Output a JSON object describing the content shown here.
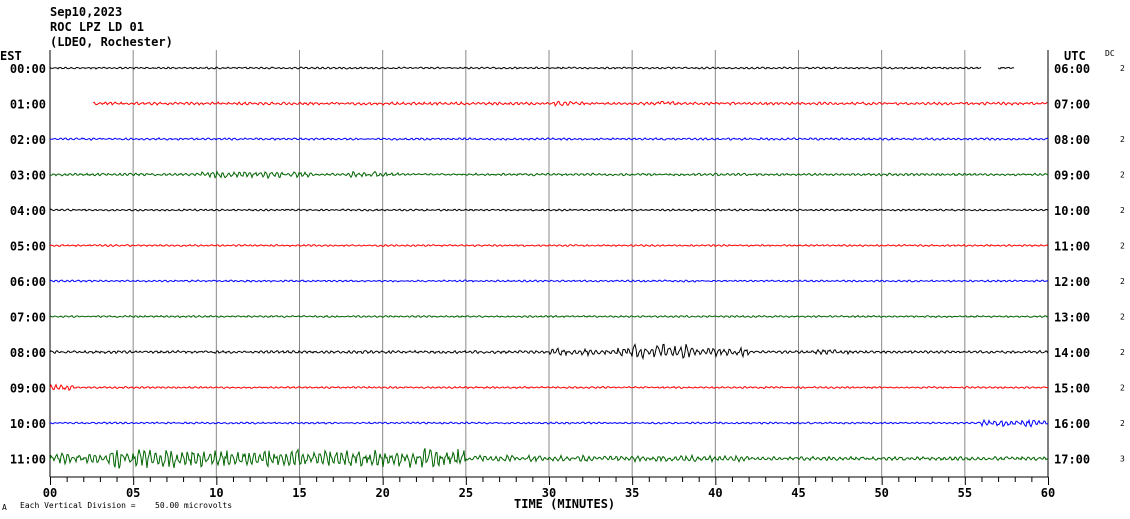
{
  "chart_data": {
    "type": "line",
    "title_lines": [
      "Sep10,2023",
      "ROC LPZ LD 01",
      "(LDEO, Rochester)"
    ],
    "left_axis_label": "EST",
    "right_axis_label": "UTC",
    "dc_label": "DC",
    "xlabel": "TIME (MINUTES)",
    "xlim": [
      0,
      60
    ],
    "x_ticks": [
      "00",
      "05",
      "10",
      "15",
      "20",
      "25",
      "30",
      "35",
      "40",
      "45",
      "50",
      "55",
      "60"
    ],
    "scale_note": "Each Vertical Division =",
    "scale_value": "50.00 microvolts",
    "corner_mark": "A",
    "rows": [
      {
        "est": "00:00",
        "utc": "06:00",
        "dc": "2",
        "color": "#000000",
        "start": 0,
        "end": 56,
        "extra": [
          57,
          58
        ],
        "env": [
          [
            0,
            60,
            1.0
          ]
        ]
      },
      {
        "est": "01:00",
        "utc": "07:00",
        "dc": "",
        "color": "#ff0000",
        "start": 2.6,
        "end": 60,
        "env": [
          [
            2.6,
            60,
            1.5
          ],
          [
            30,
            32,
            2.5
          ],
          [
            36.5,
            37.5,
            3.5
          ]
        ]
      },
      {
        "est": "02:00",
        "utc": "08:00",
        "dc": "2",
        "color": "#0000ff",
        "start": 0,
        "end": 60,
        "env": [
          [
            0,
            60,
            1.2
          ]
        ]
      },
      {
        "est": "03:00",
        "utc": "09:00",
        "dc": "2",
        "color": "#006400",
        "start": 0,
        "end": 60,
        "env": [
          [
            0,
            60,
            1.3
          ],
          [
            9,
            16,
            4
          ],
          [
            18,
            21,
            3.5
          ]
        ]
      },
      {
        "est": "04:00",
        "utc": "10:00",
        "dc": "2",
        "color": "#000000",
        "start": 0,
        "end": 60,
        "env": [
          [
            0,
            60,
            1.0
          ]
        ]
      },
      {
        "est": "05:00",
        "utc": "11:00",
        "dc": "2",
        "color": "#ff0000",
        "start": 0,
        "end": 60,
        "env": [
          [
            0,
            60,
            1.0
          ]
        ]
      },
      {
        "est": "06:00",
        "utc": "12:00",
        "dc": "2",
        "color": "#0000ff",
        "start": 0,
        "end": 60,
        "env": [
          [
            0,
            60,
            1.0
          ]
        ]
      },
      {
        "est": "07:00",
        "utc": "13:00",
        "dc": "2",
        "color": "#006400",
        "start": 0,
        "end": 60,
        "env": [
          [
            0,
            60,
            1.0
          ]
        ]
      },
      {
        "est": "08:00",
        "utc": "14:00",
        "dc": "2",
        "color": "#000000",
        "start": 0,
        "end": 60,
        "env": [
          [
            0,
            60,
            1.5
          ],
          [
            30,
            34,
            4
          ],
          [
            34,
            38.5,
            9
          ],
          [
            38.5,
            42,
            5
          ],
          [
            46,
            48,
            3
          ]
        ]
      },
      {
        "est": "09:00",
        "utc": "15:00",
        "dc": "2",
        "color": "#ff0000",
        "start": 0,
        "end": 60,
        "env": [
          [
            0,
            60,
            1.0
          ],
          [
            0,
            1.5,
            4
          ]
        ]
      },
      {
        "est": "10:00",
        "utc": "16:00",
        "dc": "2",
        "color": "#0000ff",
        "start": 0,
        "end": 60,
        "env": [
          [
            0,
            60,
            1.0
          ],
          [
            56,
            60,
            4
          ]
        ]
      },
      {
        "est": "11:00",
        "utc": "17:00",
        "dc": "3",
        "color": "#006400",
        "start": 0,
        "end": 60,
        "env": [
          [
            0,
            60,
            2
          ],
          [
            0,
            3.5,
            6
          ],
          [
            3.5,
            25,
            11
          ],
          [
            25,
            42,
            3.5
          ]
        ]
      }
    ]
  }
}
